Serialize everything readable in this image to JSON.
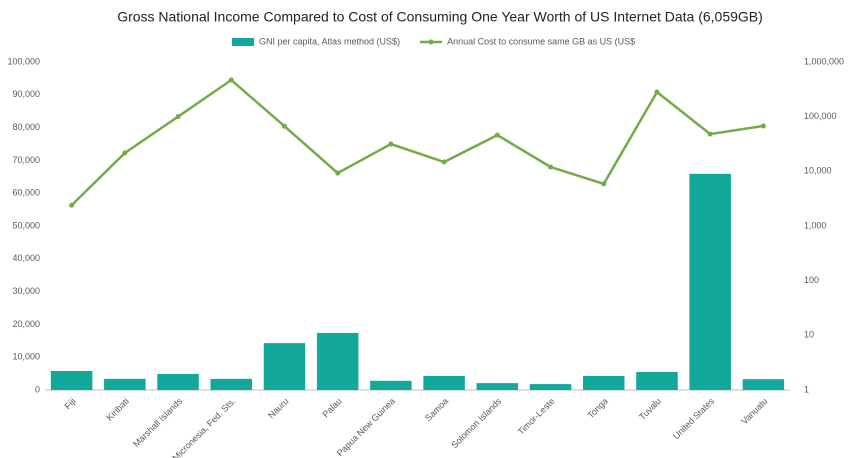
{
  "chart_data": {
    "type": "bar-line",
    "title": "Gross National Income Compared to Cost of Consuming One Year Worth of US Internet Data (6,059GB)",
    "categories": [
      "Fiji",
      "Kiribati",
      "Marshall Islands",
      "Micronesia, Fed. Sts.",
      "Nauru",
      "Palau",
      "Papua New Guinea",
      "Samoa",
      "Solomon Islands",
      "Timor-Leste",
      "Tonga",
      "Tuvalu",
      "United States",
      "Vanuatu"
    ],
    "series": [
      {
        "name": "GNI per capita, Atlas method (US$)",
        "type": "bar",
        "color": "#12a89c",
        "values": [
          5800,
          3400,
          4900,
          3400,
          14300,
          17400,
          2800,
          4300,
          2100,
          1800,
          4300,
          5500,
          65900,
          3300
        ]
      },
      {
        "name": "Annual Cost to consume same GB as US (US$",
        "type": "line",
        "axis": "y2",
        "color": "#70ad47",
        "values": [
          2400,
          21700,
          100000,
          468000,
          67000,
          9300,
          31600,
          14800,
          46000,
          12000,
          5900,
          282000,
          48000,
          67600
        ]
      }
    ],
    "ylim": [
      0,
      100000
    ],
    "yticks": [
      0,
      {
        "value": 10000,
        "label": "10,000"
      },
      {
        "value": 20000,
        "label": "20,000"
      },
      {
        "value": 30000,
        "label": "30,000"
      },
      {
        "value": 40000,
        "label": "40,000"
      },
      {
        "value": 50000,
        "label": "50,000"
      },
      {
        "value": 60000,
        "label": "60,000"
      },
      {
        "value": 70000,
        "label": "70,000"
      },
      {
        "value": 80000,
        "label": "80,000"
      },
      {
        "value": 90000,
        "label": "90,000"
      },
      {
        "value": 100000,
        "label": "100,000"
      }
    ],
    "y2lim": [
      1,
      1000000
    ],
    "y2scale": "log",
    "y2ticks": [
      1,
      10,
      100,
      {
        "value": 1000,
        "label": "1,000"
      },
      {
        "value": 10000,
        "label": "10,000"
      },
      {
        "value": 100000,
        "label": "100,000"
      },
      {
        "value": 1000000,
        "label": "1,000,000"
      }
    ],
    "grid": false,
    "legend": "top"
  }
}
